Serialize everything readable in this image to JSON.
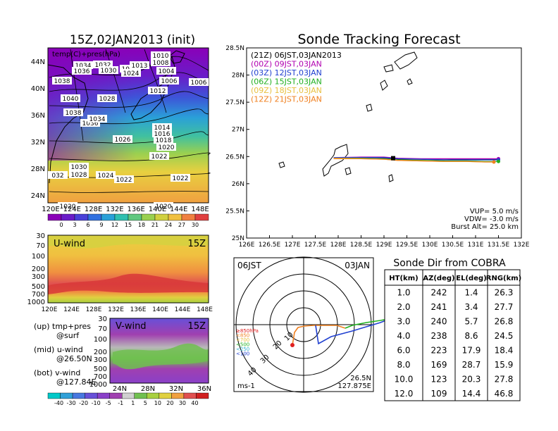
{
  "titles": {
    "left": "15Z,02JAN2013 (init)",
    "main": "Sonde Tracking Forecast",
    "dir_table": "Sonde Dir from COBRA"
  },
  "map_panel": {
    "overlay_label": "temp(C)+pres(hPa)",
    "x_ticks": [
      "120E",
      "124E",
      "128E",
      "132E",
      "136E",
      "140E",
      "144E",
      "148E"
    ],
    "y_ticks": [
      "24N",
      "28N",
      "32N",
      "36N",
      "40N",
      "44N"
    ],
    "pressure_labels": [
      {
        "t": "1010"
      },
      {
        "t": "1008"
      },
      {
        "t": "1004"
      },
      {
        "t": "1034"
      },
      {
        "t": "1032"
      },
      {
        "t": "1030"
      },
      {
        "t": "1026"
      },
      {
        "t": "1024"
      },
      {
        "t": "1013"
      },
      {
        "t": "1036"
      },
      {
        "t": "1006"
      },
      {
        "t": "1006"
      },
      {
        "t": "1038"
      },
      {
        "t": "1012"
      },
      {
        "t": "1040"
      },
      {
        "t": "1028"
      },
      {
        "t": "1038"
      },
      {
        "t": "1036"
      },
      {
        "t": "1034"
      },
      {
        "t": "1026"
      },
      {
        "t": "1014"
      },
      {
        "t": "1016"
      },
      {
        "t": "1018"
      },
      {
        "t": "1020"
      },
      {
        "t": "1022"
      },
      {
        "t": "1030"
      },
      {
        "t": "1028"
      },
      {
        "t": "1024"
      },
      {
        "t": "032"
      },
      {
        "t": "1022"
      },
      {
        "t": "1022"
      },
      {
        "t": "1020"
      },
      {
        "t": "1020"
      }
    ],
    "colorbar_ticks": [
      "0",
      "3",
      "6",
      "9",
      "12",
      "15",
      "18",
      "21",
      "24",
      "27",
      "30"
    ],
    "colorbar_colors": [
      "#8a00b8",
      "#6a1cc8",
      "#4840d8",
      "#3070e0",
      "#2aa0d8",
      "#30c0b0",
      "#60c880",
      "#9ad050",
      "#d0d040",
      "#f0c040",
      "#f08040",
      "#e04040"
    ]
  },
  "u_panel": {
    "label": "U-wind",
    "time": "15Z",
    "y_ticks": [
      "30",
      "70",
      "100",
      "200",
      "300",
      "500",
      "700",
      "1000"
    ],
    "x_ticks": [
      "120E",
      "124E",
      "128E",
      "132E",
      "136E",
      "140E",
      "144E",
      "148E"
    ]
  },
  "v_panel": {
    "label": "V-wind",
    "time": "15Z",
    "y_ticks": [
      "30",
      "70",
      "100",
      "200",
      "300",
      "500",
      "700",
      "1000"
    ],
    "x_ticks": [
      "24N",
      "28N",
      "32N",
      "36N"
    ]
  },
  "notes": {
    "up1": "(up) tmp+pres",
    "up2": "@surf",
    "mid1": "(mid) u-wind",
    "mid2": "@26.50N",
    "bot1": "(bot) v-wind",
    "bot2": "@127.84E"
  },
  "wind_colorbar": {
    "ticks": [
      "-40",
      "-30",
      "-20",
      "-10",
      "-5",
      "-1",
      "1",
      "5",
      "10",
      "20",
      "30",
      "40"
    ],
    "colors": [
      "#00c8c8",
      "#30a0d8",
      "#4878e0",
      "#6850d8",
      "#8a40c8",
      "#a040b0",
      "#d0d0d0",
      "#70c050",
      "#a8d040",
      "#e0d040",
      "#f0a040",
      "#e05050",
      "#d02020"
    ]
  },
  "track_map": {
    "x_ticks": [
      "126E",
      "126.5E",
      "127E",
      "127.5E",
      "128E",
      "128.5E",
      "129E",
      "129.5E",
      "130E",
      "130.5E",
      "131E",
      "131.5E",
      "132E"
    ],
    "y_ticks": [
      "25N",
      "25.5N",
      "26N",
      "26.5N",
      "27N",
      "27.5N",
      "28N",
      "28.5N"
    ],
    "legend": [
      {
        "t": "(21Z) 06JST,03JAN2013",
        "c": "#000000"
      },
      {
        "t": "(00Z) 09JST,03JAN",
        "c": "#b000b0"
      },
      {
        "t": "(03Z) 12JST,03JAN",
        "c": "#2040d0"
      },
      {
        "t": "(06Z) 15JST,03JAN",
        "c": "#20b020"
      },
      {
        "t": "(09Z) 18JST,03JAN",
        "c": "#e8c040"
      },
      {
        "t": "(12Z) 21JST,03JAN",
        "c": "#f08020"
      }
    ],
    "params": [
      "VUP= 5.0 m/s",
      "VDW= -3.0 m/s",
      "Burst Alt= 25.0 km"
    ]
  },
  "polar": {
    "time": "06JST",
    "date": "03JAN",
    "location1": "26.5N",
    "location2": "127.875E",
    "unit": "ms-1",
    "ring_labels": [
      "10",
      "20",
      "30",
      "40"
    ],
    "level_legend": [
      {
        "t": "≥850hPa",
        "c": "#e02020"
      },
      {
        "t": "<850",
        "c": "#f08020"
      },
      {
        "t": "<700",
        "c": "#e8c040"
      },
      {
        "t": "<500",
        "c": "#20b020"
      },
      {
        "t": "<250",
        "c": "#30b0d0"
      },
      {
        "t": "<100",
        "c": "#2040d0"
      }
    ]
  },
  "chart_data": [
    {
      "type": "table",
      "title": "Sonde Dir from COBRA",
      "columns": [
        "HT(km)",
        "AZ(deg)",
        "EL(deg)",
        "RNG(km)"
      ],
      "rows": [
        [
          "1.0",
          "242",
          "1.4",
          "26.3"
        ],
        [
          "2.0",
          "241",
          "3.4",
          "27.7"
        ],
        [
          "3.0",
          "240",
          "5.7",
          "26.8"
        ],
        [
          "4.0",
          "238",
          "8.6",
          "24.5"
        ],
        [
          "6.0",
          "223",
          "17.9",
          "18.4"
        ],
        [
          "8.0",
          "169",
          "28.7",
          "15.9"
        ],
        [
          "10.0",
          "123",
          "20.3",
          "27.8"
        ],
        [
          "12.0",
          "109",
          "14.4",
          "46.8"
        ]
      ]
    },
    {
      "type": "line",
      "title": "Sonde Tracking Forecast",
      "xlabel": "",
      "ylabel": "",
      "xlim": [
        126,
        132
      ],
      "ylim": [
        25,
        28.5
      ],
      "series": [
        {
          "name": "(21Z) 06JST,03JAN2013",
          "color": "#000000",
          "x": [
            127.9,
            128.5,
            129.0,
            129.3,
            129.8,
            130.3,
            130.8,
            131.2,
            131.5
          ],
          "y": [
            26.47,
            26.48,
            26.47,
            26.45,
            26.45,
            26.44,
            26.45,
            26.45,
            26.45
          ]
        },
        {
          "name": "(00Z) 09JST,03JAN",
          "color": "#b000b0",
          "x": [
            127.9,
            128.5,
            129.0,
            129.3,
            129.8,
            130.3,
            130.8,
            131.2,
            131.5
          ],
          "y": [
            26.48,
            26.49,
            26.49,
            26.47,
            26.46,
            26.46,
            26.46,
            26.46,
            26.46
          ]
        },
        {
          "name": "(03Z) 12JST,03JAN",
          "color": "#2040d0",
          "x": [
            127.9,
            128.5,
            129.0,
            129.3,
            129.8,
            130.3,
            130.8,
            131.2,
            131.5
          ],
          "y": [
            26.48,
            26.48,
            26.48,
            26.46,
            26.45,
            26.44,
            26.44,
            26.44,
            26.44
          ]
        },
        {
          "name": "(06Z) 15JST,03JAN",
          "color": "#20b020",
          "x": [
            127.9,
            128.5,
            129.0,
            129.3,
            129.8,
            130.3,
            130.8,
            131.2,
            131.5
          ],
          "y": [
            26.47,
            26.47,
            26.46,
            26.44,
            26.43,
            26.42,
            26.42,
            26.41,
            26.41
          ]
        },
        {
          "name": "(09Z) 18JST,03JAN",
          "color": "#e8c040",
          "x": [
            127.9,
            128.5,
            129.0,
            129.3,
            129.8,
            130.3,
            130.8,
            131.2,
            131.4
          ],
          "y": [
            26.47,
            26.46,
            26.45,
            26.43,
            26.42,
            26.41,
            26.41,
            26.4,
            26.4
          ]
        },
        {
          "name": "(12Z) 21JST,03JAN",
          "color": "#f08020",
          "x": [
            127.9,
            128.5,
            129.0,
            129.3,
            129.8,
            130.3,
            130.8,
            131.2,
            131.4
          ],
          "y": [
            26.46,
            26.46,
            26.45,
            26.43,
            26.42,
            26.41,
            26.41,
            26.4,
            26.4
          ]
        }
      ]
    }
  ]
}
